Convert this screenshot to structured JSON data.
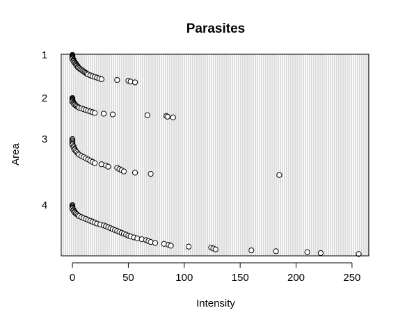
{
  "chart_data": {
    "type": "scatter",
    "title": "Parasites",
    "xlabel": "Intensity",
    "ylabel": "Area",
    "x_ticks": [
      0,
      50,
      100,
      150,
      200,
      250
    ],
    "y_tick_labels": [
      {
        "label": "1",
        "area": 1
      },
      {
        "label": "2",
        "area": 2
      },
      {
        "label": "3",
        "area": 3
      },
      {
        "label": "4",
        "area": 4
      }
    ],
    "xlim": [
      -10,
      265
    ],
    "grid": "dense vertical gray lines",
    "point_style": "open circle",
    "series": [
      {
        "area": 1,
        "x": [
          0,
          0,
          0,
          0,
          0,
          0,
          1,
          1,
          1,
          2,
          2,
          3,
          3,
          4,
          4,
          5,
          5,
          6,
          7,
          8,
          9,
          10,
          11,
          12,
          13,
          14,
          16,
          18,
          20,
          22,
          24,
          26,
          40,
          50,
          52,
          56
        ],
        "y": [
          1.0,
          1.01,
          1.02,
          1.03,
          1.04,
          1.05,
          1.06,
          1.07,
          1.08,
          1.09,
          1.1,
          1.11,
          1.12,
          1.13,
          1.14,
          1.15,
          1.16,
          1.17,
          1.18,
          1.19,
          1.2,
          1.21,
          1.22,
          1.23,
          1.24,
          1.25,
          1.26,
          1.27,
          1.28,
          1.29,
          1.3,
          1.31,
          1.32,
          1.33,
          1.34,
          1.35
        ]
      },
      {
        "area": 2,
        "x": [
          0,
          0,
          0,
          0,
          0,
          0,
          1,
          1,
          2,
          2,
          3,
          4,
          5,
          6,
          8,
          10,
          12,
          14,
          16,
          18,
          20,
          28,
          36,
          67,
          84,
          85,
          90
        ],
        "y": [
          2.0,
          2.01,
          2.02,
          2.03,
          2.04,
          2.05,
          2.06,
          2.07,
          2.08,
          2.09,
          2.1,
          2.11,
          2.12,
          2.13,
          2.14,
          2.15,
          2.16,
          2.17,
          2.18,
          2.19,
          2.2,
          2.21,
          2.22,
          2.23,
          2.24,
          2.25,
          2.26
        ]
      },
      {
        "area": 3,
        "x": [
          0,
          0,
          0,
          0,
          0,
          0,
          1,
          1,
          2,
          2,
          3,
          4,
          5,
          6,
          8,
          10,
          12,
          14,
          16,
          18,
          20,
          26,
          30,
          32,
          40,
          42,
          44,
          46,
          56,
          70,
          185
        ],
        "y": [
          3.0,
          3.01,
          3.02,
          3.03,
          3.04,
          3.05,
          3.06,
          3.07,
          3.08,
          3.09,
          3.1,
          3.11,
          3.12,
          3.13,
          3.14,
          3.15,
          3.16,
          3.17,
          3.18,
          3.19,
          3.2,
          3.21,
          3.22,
          3.23,
          3.24,
          3.25,
          3.26,
          3.27,
          3.28,
          3.29,
          3.3
        ]
      },
      {
        "area": 4,
        "x": [
          0,
          0,
          0,
          0,
          0,
          1,
          1,
          2,
          2,
          3,
          4,
          5,
          6,
          8,
          10,
          12,
          14,
          16,
          18,
          20,
          22,
          25,
          28,
          30,
          32,
          34,
          36,
          38,
          40,
          42,
          44,
          46,
          48,
          50,
          52,
          55,
          58,
          62,
          66,
          68,
          70,
          74,
          82,
          86,
          88,
          104,
          124,
          126,
          128,
          160,
          182,
          210,
          222,
          256
        ],
        "y": [
          4.0,
          4.01,
          4.02,
          4.03,
          4.04,
          4.05,
          4.06,
          4.07,
          4.08,
          4.09,
          4.1,
          4.11,
          4.12,
          4.13,
          4.14,
          4.15,
          4.16,
          4.17,
          4.18,
          4.19,
          4.2,
          4.21,
          4.22,
          4.23,
          4.24,
          4.25,
          4.26,
          4.27,
          4.28,
          4.29,
          4.3,
          4.31,
          4.32,
          4.33,
          4.34,
          4.35,
          4.36,
          4.37,
          4.38,
          4.39,
          4.4,
          4.41,
          4.42,
          4.43,
          4.44,
          4.45,
          4.46,
          4.47,
          4.48,
          4.49,
          4.5,
          4.51,
          4.52,
          4.53
        ]
      }
    ]
  }
}
